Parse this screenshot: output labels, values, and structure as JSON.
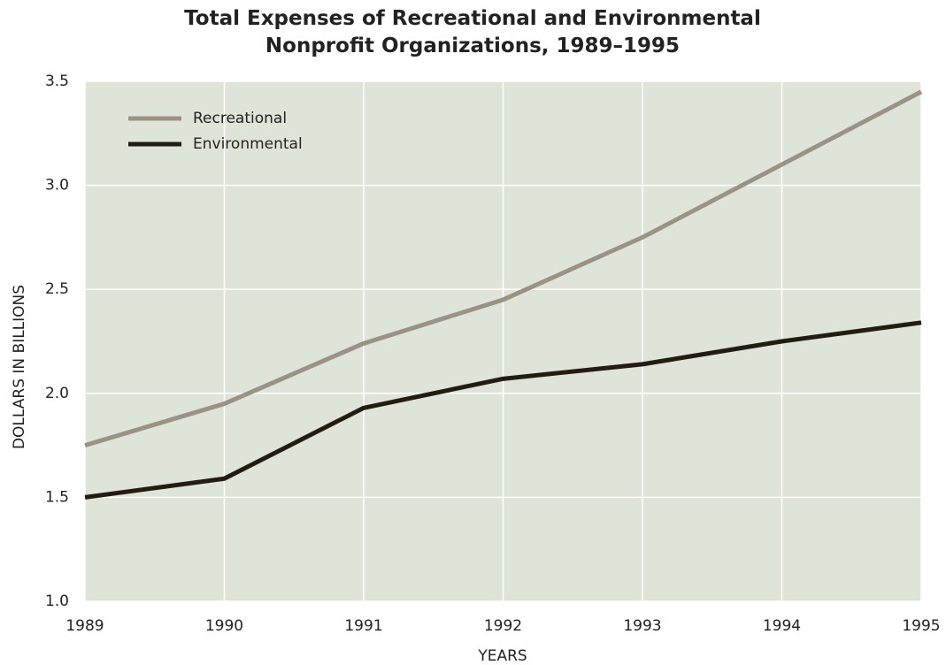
{
  "chart_data": {
    "type": "line",
    "title": "Total Expenses of Recreational and Environmental Nonprofit Organizations, 1989–1995",
    "x_label": "YEARS",
    "y_label": "DOLLARS IN BILLIONS",
    "x": [
      1989,
      1990,
      1991,
      1992,
      1993,
      1994,
      1995
    ],
    "series": [
      {
        "name": "Recreational",
        "color": "#9a9385",
        "values": [
          1.75,
          1.95,
          2.24,
          2.45,
          2.75,
          3.1,
          3.45
        ]
      },
      {
        "name": "Environmental",
        "color": "#231c10",
        "values": [
          1.5,
          1.59,
          1.93,
          2.07,
          2.14,
          2.25,
          2.34
        ]
      }
    ],
    "xlim": [
      1989,
      1995
    ],
    "xticks": [
      1989,
      1990,
      1991,
      1992,
      1993,
      1994,
      1995
    ],
    "ylim": [
      1,
      3.5
    ],
    "yticks": [
      {
        "value": 1,
        "label": "1.0"
      },
      1.5,
      {
        "value": 2,
        "label": "2.0"
      },
      2.5,
      {
        "value": 3,
        "label": "3.0"
      },
      3.5
    ],
    "grid": true,
    "legend": "upper left"
  }
}
